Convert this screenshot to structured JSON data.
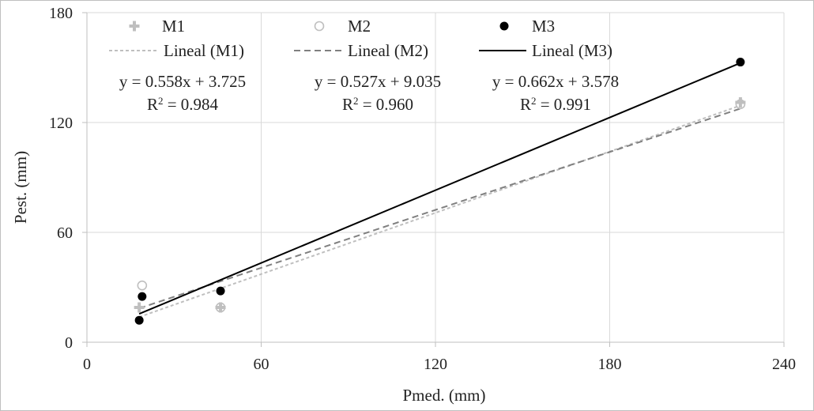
{
  "chart_data": {
    "type": "scatter",
    "title": "",
    "xlabel": "Pmed. (mm)",
    "ylabel": "Pest. (mm)",
    "xlim": [
      0,
      240
    ],
    "ylim": [
      0,
      180
    ],
    "xticks": [
      0,
      60,
      120,
      180,
      240
    ],
    "yticks": [
      0,
      60,
      120,
      180
    ],
    "grid": true,
    "legend_position": "top",
    "series": [
      {
        "name": "M1",
        "marker": "plus",
        "color": "#bfbfbf",
        "points": [
          [
            18,
            19
          ],
          [
            46,
            19
          ],
          [
            225,
            131
          ]
        ],
        "trendline": {
          "label": "Lineal (M1)",
          "style": "short-dash",
          "color": "#bfbfbf",
          "slope": 0.558,
          "intercept": 3.725,
          "x_range": [
            18,
            225
          ],
          "equation": "y = 0.558x + 3.725",
          "r2_prefix": "R",
          "r2_suffix": " = 0.984"
        }
      },
      {
        "name": "M2",
        "marker": "open-circle",
        "color": "#bfbfbf",
        "points": [
          [
            19,
            31
          ],
          [
            46,
            19
          ],
          [
            225,
            130
          ]
        ],
        "trendline": {
          "label": "Lineal (M2)",
          "style": "dash",
          "color": "#808080",
          "slope": 0.527,
          "intercept": 9.035,
          "x_range": [
            18,
            225
          ],
          "equation": "y = 0.527x + 9.035",
          "r2_prefix": "R",
          "r2_suffix": " = 0.960"
        }
      },
      {
        "name": "M3",
        "marker": "filled-circle",
        "color": "#000000",
        "points": [
          [
            18,
            12
          ],
          [
            19,
            25
          ],
          [
            46,
            28
          ],
          [
            225,
            153
          ]
        ],
        "trendline": {
          "label": "Lineal (M3)",
          "style": "solid",
          "color": "#000000",
          "slope": 0.662,
          "intercept": 3.578,
          "x_range": [
            18,
            225
          ],
          "equation": "y = 0.662x + 3.578",
          "r2_prefix": "R",
          "r2_suffix": " = 0.991"
        }
      }
    ]
  }
}
